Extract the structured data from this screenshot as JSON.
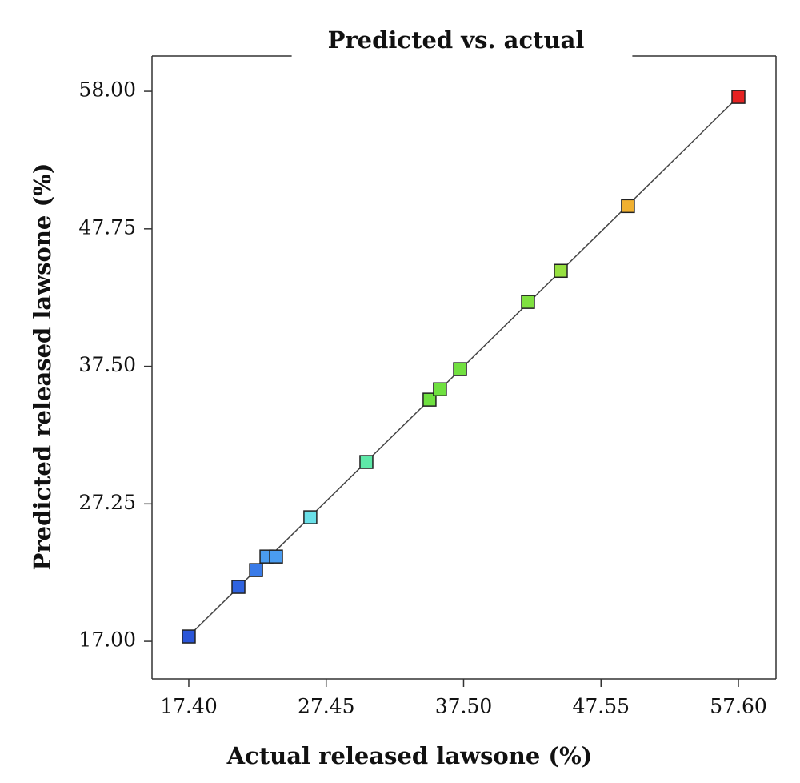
{
  "chart_data": {
    "type": "scatter",
    "title": "Predicted vs. actual",
    "x_label": "Actual released lawsone (%)",
    "y_label": "Predicted released lawsone (%)",
    "x": [
      17.4,
      21.03,
      22.32,
      23.08,
      23.78,
      26.29,
      30.39,
      35.01,
      35.77,
      37.24,
      42.21,
      44.61,
      49.52,
      57.6
    ],
    "values": [
      17.36,
      21.06,
      22.31,
      23.32,
      23.32,
      26.25,
      30.37,
      35.02,
      35.79,
      37.29,
      42.3,
      44.62,
      49.45,
      57.58
    ],
    "colors": [
      "#2a55d8",
      "#2f63e0",
      "#3a7be8",
      "#4a9cf0",
      "#4a9cf0",
      "#6ae0e8",
      "#5ee8a8",
      "#6fe040",
      "#6fe040",
      "#72e040",
      "#7fe040",
      "#96e040",
      "#f0b030",
      "#e52222"
    ],
    "marker": "square",
    "xlim": [
      14.71,
      60.35
    ],
    "ylim": [
      14.2,
      60.63
    ],
    "xticks": [
      {
        "value": 17.4,
        "label": "17.40"
      },
      {
        "value": 27.45,
        "label": "27.45"
      },
      {
        "value": 37.5,
        "label": "37.50"
      },
      {
        "value": 47.55,
        "label": "47.55"
      },
      {
        "value": 57.6,
        "label": "57.60"
      }
    ],
    "yticks": [
      {
        "value": 17.0,
        "label": "17.00"
      },
      {
        "value": 27.25,
        "label": "27.25"
      },
      {
        "value": 37.5,
        "label": "37.50"
      },
      {
        "value": 47.75,
        "label": "47.75"
      },
      {
        "value": 58.0,
        "label": "58.00"
      }
    ],
    "grid": false
  }
}
